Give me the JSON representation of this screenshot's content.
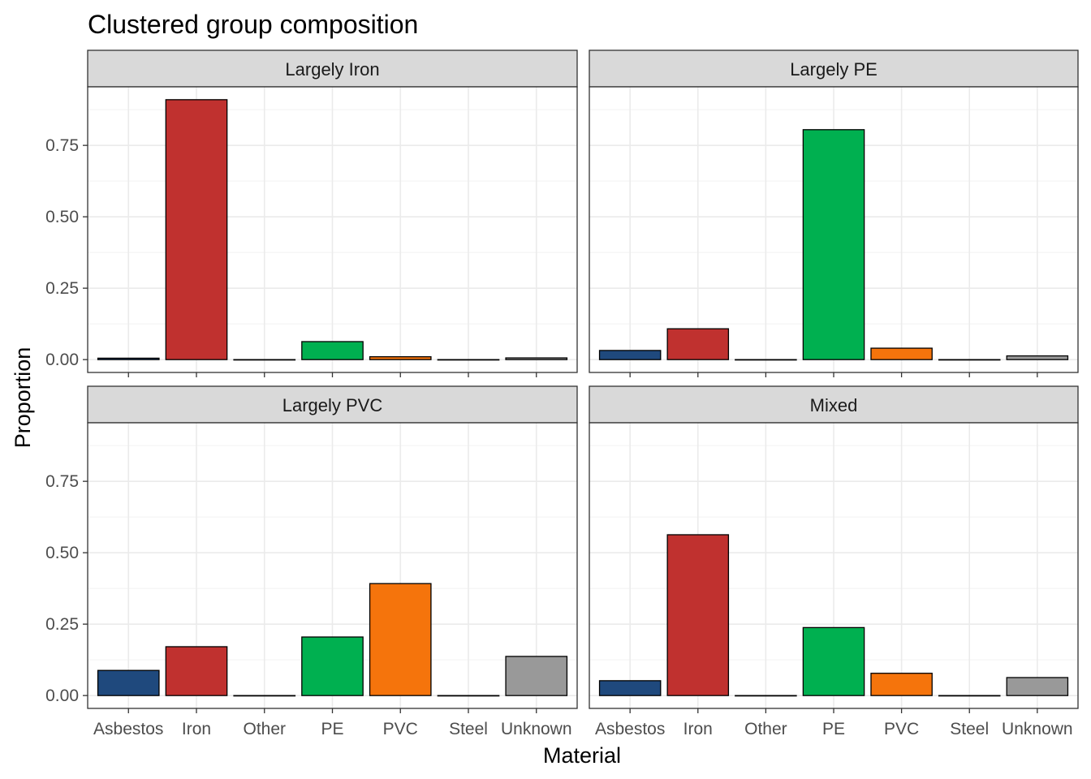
{
  "chart_data": {
    "type": "bar",
    "title": "Clustered group composition",
    "xlabel": "Material",
    "ylabel": "Proportion",
    "categories": [
      "Asbestos",
      "Iron",
      "Other",
      "PE",
      "PVC",
      "Steel",
      "Unknown"
    ],
    "colors": [
      "#1F497D",
      "#C0312F",
      "#1A1A1A",
      "#00B050",
      "#F5740C",
      "#1A1A1A",
      "#999999"
    ],
    "ylim": [
      -0.045,
      0.955
    ],
    "yticks": [
      0.0,
      0.25,
      0.5,
      0.75
    ],
    "ytick_labels": [
      "0.00",
      "0.25",
      "0.50",
      "0.75"
    ],
    "grid": true,
    "facets": [
      {
        "name": "Largely Iron",
        "values": [
          0.005,
          0.91,
          0.0,
          0.063,
          0.01,
          0.0,
          0.006
        ]
      },
      {
        "name": "Largely PE",
        "values": [
          0.032,
          0.108,
          0.0,
          0.805,
          0.04,
          0.0,
          0.013
        ]
      },
      {
        "name": "Largely PVC",
        "values": [
          0.088,
          0.171,
          0.0,
          0.205,
          0.392,
          0.0,
          0.137
        ]
      },
      {
        "name": "Mixed",
        "values": [
          0.052,
          0.563,
          0.0,
          0.238,
          0.078,
          0.0,
          0.063
        ]
      }
    ]
  }
}
